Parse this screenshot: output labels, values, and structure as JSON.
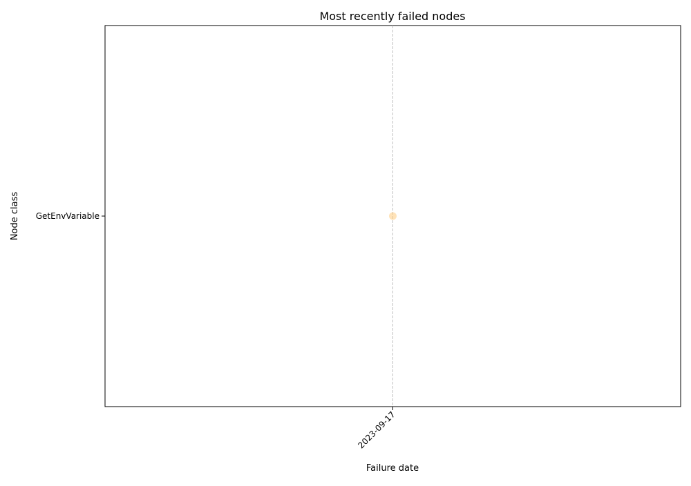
{
  "chart_data": {
    "type": "scatter",
    "title": "Most recently failed nodes",
    "xlabel": "Failure date",
    "ylabel": "Node class",
    "categories_y": [
      "GetEnvVariable"
    ],
    "x_ticks": [
      "2023-09-17"
    ],
    "points": [
      {
        "x": "2023-09-17",
        "y": "GetEnvVariable"
      }
    ],
    "grid": "vertical dashed at x ticks",
    "point_color": "#ffcc80"
  }
}
